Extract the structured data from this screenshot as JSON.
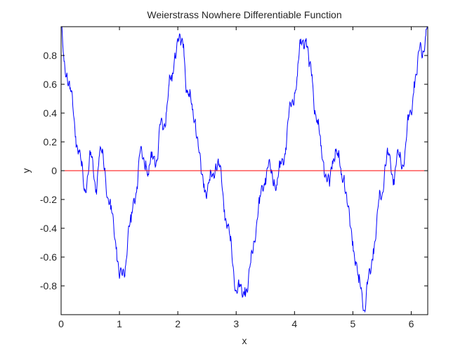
{
  "chart_data": {
    "type": "line",
    "title": "Weierstrass Nowhere Differentiable Function",
    "xlabel": "x",
    "ylabel": "y",
    "xlim": [
      0,
      6.2832
    ],
    "ylim": [
      -1,
      1
    ],
    "xticks": [
      0,
      1,
      2,
      3,
      4,
      5,
      6
    ],
    "xtick_labels": [
      "0",
      "1",
      "2",
      "3",
      "4",
      "5",
      "6"
    ],
    "yticks": [
      -0.8,
      -0.6,
      -0.4,
      -0.2,
      0,
      0.2,
      0.4,
      0.6,
      0.8
    ],
    "ytick_labels": [
      "-0.8",
      "-0.6",
      "-0.4",
      "-0.2",
      "0",
      "0.2",
      "0.4",
      "0.6",
      "0.8"
    ],
    "grid": false,
    "legend": "none",
    "colors": {
      "series": "#0000ff",
      "reference": "#ff0000",
      "axes": "#000000",
      "background": "#ffffff"
    },
    "series": [
      {
        "color": "#0000ff",
        "x": [
          0,
          0.05,
          0.1,
          0.15,
          0.2,
          0.25,
          0.3,
          0.35,
          0.4,
          0.45,
          0.5,
          0.55,
          0.6,
          0.65,
          0.7,
          0.75,
          0.8,
          0.85,
          0.9,
          0.95,
          1,
          1.05,
          1.1,
          1.15,
          1.2,
          1.25,
          1.3,
          1.35,
          1.4,
          1.45,
          1.5,
          1.55,
          1.6,
          1.65,
          1.7,
          1.75,
          1.8,
          1.85,
          1.9,
          1.95,
          2,
          2.05,
          2.1,
          2.15,
          2.2,
          2.25,
          2.3,
          2.35,
          2.4,
          2.45,
          2.5,
          2.55,
          2.6,
          2.65,
          2.7,
          2.75,
          2.8,
          2.85,
          2.9,
          2.95,
          3,
          3.05,
          3.1,
          3.15,
          3.2,
          3.25,
          3.3,
          3.35,
          3.4,
          3.45,
          3.5,
          3.55,
          3.6,
          3.65,
          3.7,
          3.75,
          3.8,
          3.85,
          3.9,
          3.95,
          4,
          4.05,
          4.1,
          4.15,
          4.2,
          4.25,
          4.3,
          4.35,
          4.4,
          4.45,
          4.5,
          4.55,
          4.6,
          4.65,
          4.7,
          4.75,
          4.8,
          4.85,
          4.9,
          4.95,
          5,
          5.05,
          5.1,
          5.15,
          5.2,
          5.25,
          5.3,
          5.35,
          5.4,
          5.45,
          5.5,
          5.55,
          5.6,
          5.65,
          5.7,
          5.75,
          5.8,
          5.85,
          5.9,
          5.95,
          6,
          6.05,
          6.1,
          6.15,
          6.2,
          6.25,
          6.28
        ],
        "y": [
          1,
          0.76,
          0.68,
          0.57,
          0.45,
          0.24,
          0.14,
          0.03,
          -0.14,
          -0.04,
          0.11,
          0.01,
          -0.13,
          0.09,
          0.12,
          0.02,
          -0.19,
          -0.27,
          -0.37,
          -0.53,
          -0.75,
          -0.73,
          -0.67,
          -0.42,
          -0.36,
          -0.19,
          -0.11,
          0.12,
          0.08,
          0.07,
          -0.03,
          0.09,
          0.1,
          0.08,
          0.32,
          0.29,
          0.4,
          0.6,
          0.62,
          0.82,
          0.92,
          0.87,
          0.88,
          0.56,
          0.51,
          0.42,
          0.36,
          0.17,
          -0.02,
          -0.09,
          -0.15,
          -0.07,
          -0.03,
          0.05,
          0.04,
          -0.07,
          -0.27,
          -0.38,
          -0.49,
          -0.67,
          -0.83,
          -0.81,
          -0.86,
          -0.81,
          -0.83,
          -0.64,
          -0.49,
          -0.37,
          -0.23,
          -0.11,
          -0.05,
          0.03,
          -0.02,
          -0.06,
          -0.1,
          0.02,
          0.08,
          0.16,
          0.37,
          0.46,
          0.54,
          0.66,
          0.88,
          0.91,
          0.92,
          0.72,
          0.67,
          0.42,
          0.32,
          0.17,
          0.06,
          -0.06,
          -0.11,
          0.07,
          0.15,
          0.09,
          -0.03,
          -0.03,
          -0.22,
          -0.38,
          -0.49,
          -0.63,
          -0.78,
          -0.83,
          -0.97,
          -0.79,
          -0.72,
          -0.54,
          -0.42,
          -0.2,
          -0.17,
          0.04,
          0.11,
          0.03,
          -0.06,
          0.08,
          0.09,
          0.04,
          0.16,
          0.35,
          0.4,
          0.62,
          0.67,
          0.87,
          0.83,
          0.94,
          1
        ]
      },
      {
        "color": "#ff0000",
        "x": [
          0,
          6.2832
        ],
        "y": [
          0,
          0
        ]
      }
    ]
  }
}
